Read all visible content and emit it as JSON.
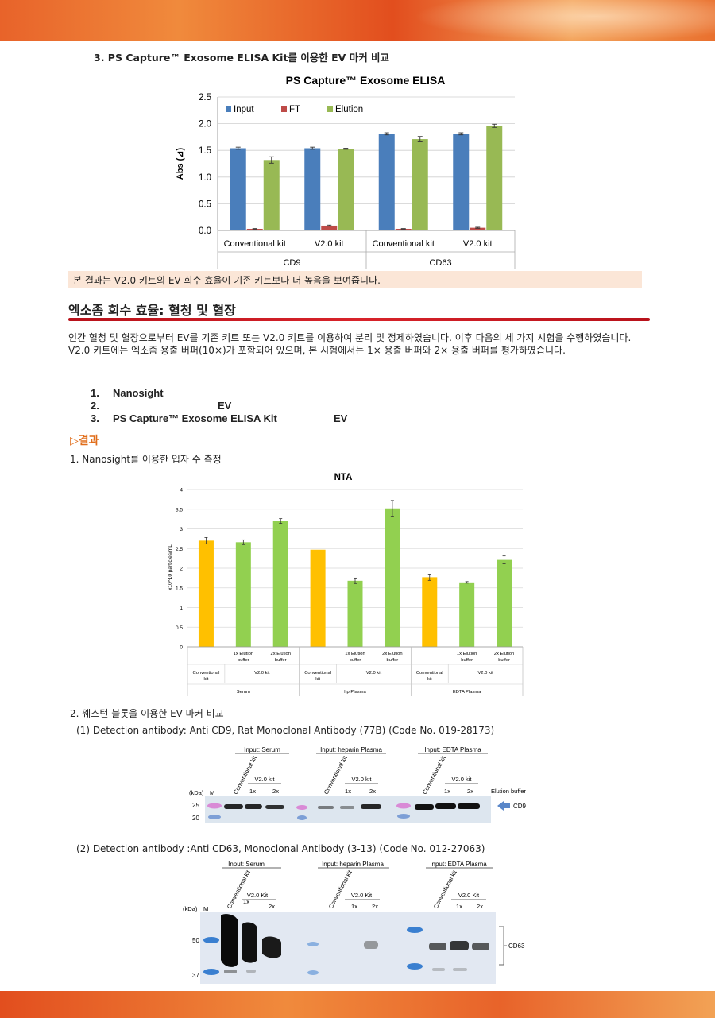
{
  "section3": {
    "title": "3.  PS Capture™ Exosome ELISA Kit를 이용한 EV 마커 비교"
  },
  "elisa_chart": {
    "title": "PS Capture™ Exosome ELISA",
    "ylabel": "Abs (⊿)"
  },
  "note": {
    "text": "본 결과는 V2.0 키트의 EV 회수 효율이 기존 키트보다 더 높음을 보여줍니다."
  },
  "heading": {
    "text": "엑소좀 회수 효율: 혈청 및 혈장"
  },
  "paragraph": {
    "text": "인간 혈청 및 혈장으로부터 EV를 기존 키트 또는 V2.0 키트를 이용하여 분리 및 정제하였습니다. 이후 다음의 세 가지 시험을 수행하였습니다. V2.0 키트에는 엑소좀 용출 버퍼(10×)가 포함되어 있으며, 본 시험에서는 1× 용출 버퍼와 2× 용출 버퍼를 평가하였습니다."
  },
  "steps": [
    {
      "num": "1.",
      "text": "Nanosight",
      "extra": ""
    },
    {
      "num": "2.",
      "text": "",
      "extra": "EV"
    },
    {
      "num": "3.",
      "text": "PS Capture™ Exosome ELISA Kit",
      "extra": "EV"
    }
  ],
  "results": {
    "heading": "▷결과",
    "item1": "1.   Nanosight를 이용한 입자 수 측정",
    "item2": "2.    웨스턴 블롯을 이용한 EV 마커 비교"
  },
  "nta_chart": {
    "title": "NTA",
    "ylabel": "x10^10 particles/mL"
  },
  "western": {
    "cd9_caption": "(1)  Detection antibody: Anti CD9, Rat Monoclonal Antibody (77B) (Code No. 019-28173)",
    "cd63_caption": "(2)  Detection antibody  :Anti CD63, Monoclonal Antibody (3-13) (Code No. 012-27063)",
    "inputs": [
      "Input: Serum",
      "Input: heparin Plasma",
      "Input: EDTA Plasma"
    ],
    "conventional": "Conventional kit",
    "v2": "V2.0 kit",
    "v2_cap": "V2.0 Kit",
    "x1": "1x",
    "x2": "2x",
    "kda": "(kDa)",
    "m": "M",
    "elution_buffer": "Elution buffer",
    "cd9_markers": [
      "25",
      "20"
    ],
    "cd63_markers": [
      "50",
      "37"
    ],
    "cd9_label": "CD9",
    "cd63_label": "CD63"
  },
  "chart_data": [
    {
      "type": "bar",
      "title": "PS Capture™ Exosome ELISA",
      "ylabel": "Abs (⊿)",
      "ylim": [
        0,
        2.5
      ],
      "yticks": [
        "0.0",
        "0.5",
        "1.0",
        "1.5",
        "2.0",
        "2.5"
      ],
      "categories": [
        "Conventional kit",
        "V2.0 kit",
        "Conventional kit",
        "V2.0 kit"
      ],
      "groups": [
        "CD9",
        "CD63"
      ],
      "legend_position": "top-left",
      "grid": true,
      "series": [
        {
          "name": "Input",
          "color": "#4a7ebb",
          "values": [
            1.54,
            1.54,
            1.81,
            1.81
          ],
          "errors": [
            0.02,
            0.02,
            0.02,
            0.02
          ]
        },
        {
          "name": "FT",
          "color": "#be4b48",
          "values": [
            0.03,
            0.09,
            0.03,
            0.05
          ],
          "errors": [
            0.005,
            0.01,
            0.005,
            0.01
          ]
        },
        {
          "name": "Elution",
          "color": "#98b954",
          "values": [
            1.32,
            1.53,
            1.71,
            1.96
          ],
          "errors": [
            0.06,
            0.01,
            0.05,
            0.03
          ]
        }
      ]
    },
    {
      "type": "bar",
      "title": "NTA",
      "ylabel": "x10^10 particles/mL",
      "ylim": [
        0,
        4
      ],
      "yticks": [
        "0",
        "0.5",
        "1",
        "1.5",
        "2",
        "2.5",
        "3",
        "3.5",
        "4"
      ],
      "grid": true,
      "groups": [
        "Serum",
        "hp Plasma",
        "EDTA Plasma"
      ],
      "subgroup_label": "V2.0 kit",
      "categories": [
        "Conventional kit",
        "1x Elution buffer",
        "2x Elution buffer",
        "Conventional kit",
        "1x Elution buffer",
        "2x Elution buffer",
        "Conventional kit",
        "1x Elution buffer",
        "2x Elution buffer"
      ],
      "values": [
        2.7,
        2.66,
        3.2,
        2.47,
        1.68,
        3.52,
        1.77,
        1.64,
        2.21
      ],
      "errors": [
        0.08,
        0.06,
        0.06,
        0.0,
        0.07,
        0.2,
        0.08,
        0.02,
        0.1
      ],
      "colors": [
        "#ffc000",
        "#92d050",
        "#92d050",
        "#ffc000",
        "#92d050",
        "#92d050",
        "#ffc000",
        "#92d050",
        "#92d050"
      ]
    }
  ]
}
